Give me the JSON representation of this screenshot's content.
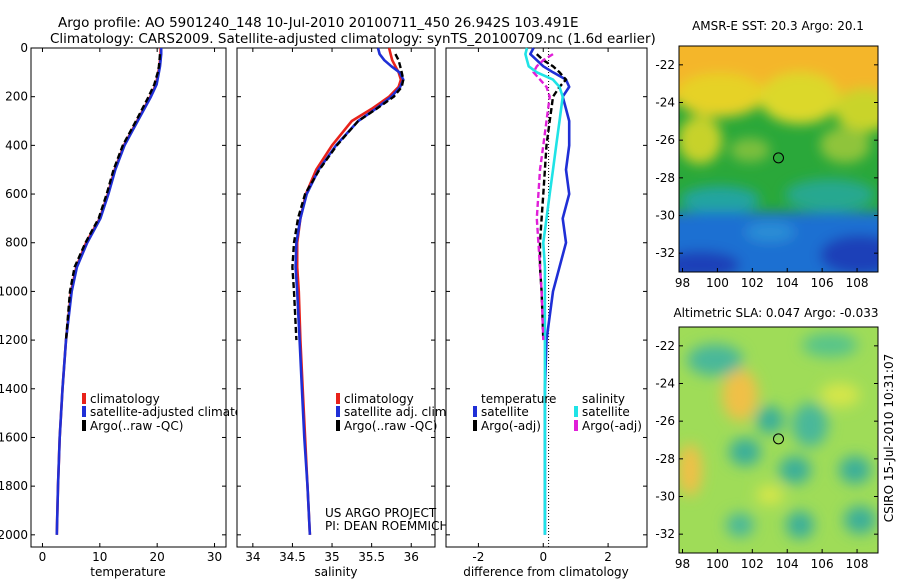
{
  "header": {
    "line1": "Argo profile: AO 5901240_148 10-Jul-2010 20100711_450 26.942S 103.491E",
    "line2": "Climatology: CARS2009. Satellite-adjusted climatology: synTS_20100709.nc (1.6d earlier)"
  },
  "side_label": "CSIRO 15-Jul-2010 10:31:07",
  "credit": {
    "line1": "US ARGO PROJECT",
    "line2": "PI: DEAN ROEMMICH"
  },
  "colors": {
    "clim": "#e8221a",
    "sat": "#1f2fd6",
    "argo": "#000000",
    "sat_s": "#1fe3e6",
    "argo_s": "#e01fd8"
  },
  "chart_data": [
    {
      "id": "temperature",
      "type": "line",
      "xlabel": "temperature",
      "xlim": [
        -2,
        32
      ],
      "xticks": [
        0,
        10,
        20,
        30
      ],
      "ylim": [
        0,
        2050
      ],
      "yticks": [
        0,
        200,
        400,
        600,
        800,
        1000,
        1200,
        1400,
        1600,
        1800,
        2000
      ],
      "depth": [
        0,
        25,
        50,
        75,
        100,
        150,
        200,
        300,
        400,
        500,
        600,
        700,
        800,
        900,
        1000,
        1200,
        1400,
        1600,
        1800,
        2000
      ],
      "series": [
        {
          "name": "climatology",
          "color": "#e8221a",
          "dash": "",
          "values": [
            20.6,
            20.6,
            20.5,
            20.4,
            20.2,
            19.8,
            18.8,
            16.5,
            14.2,
            12.6,
            11.4,
            10.0,
            7.6,
            5.9,
            5.0,
            4.1,
            3.5,
            3.0,
            2.7,
            2.5
          ]
        },
        {
          "name": "satellite-adjusted climatology",
          "color": "#1f2fd6",
          "dash": "",
          "values": [
            20.7,
            20.7,
            20.6,
            20.5,
            20.3,
            19.9,
            18.9,
            16.6,
            14.3,
            12.7,
            11.5,
            10.1,
            7.8,
            6.0,
            5.1,
            4.1,
            3.5,
            3.0,
            2.7,
            2.5
          ]
        },
        {
          "name": "Argo(..raw -QC)",
          "color": "#000000",
          "dash": "6 3",
          "values": [
            null,
            20.5,
            20.4,
            20.3,
            20.1,
            19.5,
            18.5,
            16.3,
            14.0,
            12.4,
            11.2,
            9.8,
            7.5,
            5.6,
            4.8,
            4.1,
            null,
            null,
            null,
            null
          ]
        }
      ],
      "legend": {
        "placement": "lower-center",
        "items": [
          "climatology",
          "satellite-adjusted climatology",
          "Argo(..raw -QC)"
        ]
      }
    },
    {
      "id": "salinity",
      "type": "line",
      "xlabel": "salinity",
      "xlim": [
        33.8,
        36.3
      ],
      "xticks": [
        34,
        34.5,
        35,
        35.5,
        36
      ],
      "ylim": [
        0,
        2050
      ],
      "depth": [
        0,
        25,
        50,
        75,
        100,
        130,
        160,
        200,
        250,
        300,
        400,
        500,
        600,
        700,
        800,
        900,
        1000,
        1200,
        1400,
        1600,
        1800,
        2000
      ],
      "series": [
        {
          "name": "climatology",
          "color": "#e8221a",
          "dash": "",
          "values": [
            35.72,
            35.74,
            35.76,
            35.8,
            35.84,
            35.87,
            35.84,
            35.72,
            35.5,
            35.25,
            35.0,
            34.8,
            34.67,
            34.6,
            34.56,
            34.56,
            34.58,
            34.6,
            34.63,
            34.66,
            34.69,
            34.72
          ]
        },
        {
          "name": "satellite adj. clim.",
          "color": "#1f2fd6",
          "dash": "",
          "values": [
            35.58,
            35.6,
            35.66,
            35.75,
            35.85,
            35.9,
            35.86,
            35.75,
            35.55,
            35.33,
            35.05,
            34.83,
            34.68,
            34.6,
            34.55,
            34.54,
            34.56,
            34.59,
            34.62,
            34.65,
            34.69,
            34.72
          ]
        },
        {
          "name": "Argo(..raw -QC)",
          "color": "#000000",
          "dash": "6 3",
          "values": [
            null,
            35.8,
            35.84,
            35.86,
            35.88,
            35.9,
            35.88,
            35.78,
            35.56,
            35.33,
            35.06,
            34.84,
            34.66,
            34.57,
            34.52,
            34.5,
            34.52,
            34.55,
            null,
            null,
            null,
            null
          ]
        }
      ],
      "legend": {
        "placement": "lower-center",
        "items": [
          "climatology",
          "satellite adj. clim.",
          "Argo(..raw -QC)"
        ]
      }
    },
    {
      "id": "difference",
      "type": "line",
      "xlabel": "difference from climatology",
      "xlim": [
        -3,
        3.2
      ],
      "xticks": [
        -2,
        0,
        2
      ],
      "ylim": [
        0,
        2050
      ],
      "depth": [
        0,
        25,
        50,
        75,
        100,
        130,
        160,
        200,
        250,
        300,
        400,
        500,
        600,
        700,
        800,
        900,
        1000,
        1200,
        1400,
        1600,
        1800,
        2000
      ],
      "series": [
        {
          "name": "temperature satellite",
          "color": "#1f2fd6",
          "dash": "",
          "values": [
            -0.3,
            -0.4,
            -0.2,
            0.0,
            0.3,
            0.7,
            0.8,
            0.6,
            0.7,
            0.8,
            0.8,
            0.7,
            0.8,
            0.6,
            0.7,
            0.5,
            0.3,
            0.1,
            0.05,
            0.05,
            0.05,
            0.05
          ]
        },
        {
          "name": "temperature Argo(-adj)",
          "color": "#000000",
          "dash": "6 3",
          "values": [
            null,
            -0.2,
            0.0,
            0.3,
            0.5,
            0.7,
            0.5,
            0.3,
            0.25,
            0.2,
            0.1,
            0.05,
            0.0,
            -0.05,
            -0.1,
            -0.1,
            -0.05,
            0.0,
            null,
            null,
            null,
            null
          ]
        },
        {
          "name": "salinity satellite",
          "color": "#1fe3e6",
          "dash": "",
          "values": [
            -0.5,
            -0.55,
            -0.5,
            -0.45,
            -0.2,
            0.3,
            0.5,
            0.6,
            0.55,
            0.5,
            0.4,
            0.3,
            0.2,
            0.1,
            0.0,
            0.05,
            0.05,
            0.05,
            0.05,
            0.05,
            0.05,
            0.05
          ]
        },
        {
          "name": "salinity Argo(-adj)",
          "color": "#e01fd8",
          "dash": "6 3",
          "values": [
            null,
            0.3,
            0.0,
            -0.2,
            -0.3,
            -0.1,
            0.1,
            0.2,
            0.15,
            0.1,
            0.0,
            -0.1,
            -0.15,
            -0.2,
            -0.15,
            -0.1,
            -0.05,
            0.0,
            null,
            null,
            null,
            null
          ]
        }
      ],
      "legend": {
        "placement": "lower-center",
        "groups": [
          {
            "title": "temperature",
            "items": [
              "satellite",
              "Argo(-adj)"
            ]
          },
          {
            "title": "salinity",
            "items": [
              "satellite",
              "Argo(-adj)"
            ]
          }
        ]
      }
    },
    {
      "id": "sst_map",
      "type": "heatmap",
      "title": "AMSR-E SST: 20.3 Argo: 20.1",
      "xlim": [
        97.8,
        109.2
      ],
      "ylim": [
        -33,
        -21
      ],
      "xticks": [
        98,
        100,
        102,
        104,
        106,
        108
      ],
      "yticks": [
        -22,
        -24,
        -26,
        -28,
        -30,
        -32
      ],
      "marker": {
        "lon": 103.5,
        "lat": -26.94
      }
    },
    {
      "id": "sla_map",
      "type": "heatmap",
      "title": "Altimetric SLA: 0.047 Argo: -0.033",
      "xlim": [
        97.8,
        109.2
      ],
      "ylim": [
        -33,
        -21
      ],
      "xticks": [
        98,
        100,
        102,
        104,
        106,
        108
      ],
      "yticks": [
        -22,
        -24,
        -26,
        -28,
        -30,
        -32
      ],
      "marker": {
        "lon": 103.5,
        "lat": -26.94
      }
    }
  ]
}
